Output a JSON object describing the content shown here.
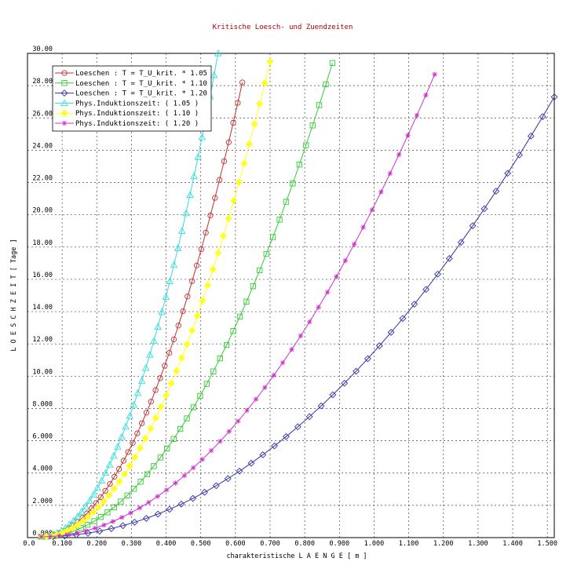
{
  "chart_data": {
    "type": "line",
    "title": "Kritische Loesch- und Zuendzeiten",
    "xlabel": "charakteristische L A E N G E  [ m ]",
    "ylabel": "L O E S C H Z E I T   [ Tage ]",
    "xlim": [
      0.0,
      1.52
    ],
    "ylim": [
      0,
      30
    ],
    "x_ticks": [
      "0.0",
      "0.100",
      "0.200",
      "0.300",
      "0.400",
      "0.500",
      "0.600",
      "0.700",
      "0.800",
      "0.900",
      "1.000",
      "1.100",
      "1.200",
      "1.300",
      "1.400",
      "1.500"
    ],
    "y_ticks": [
      "0.000",
      "2.000",
      "4.000",
      "6.000",
      "8.000",
      "10.00",
      "12.00",
      "14.00",
      "16.00",
      "18.00",
      "20.00",
      "22.00",
      "24.00",
      "26.00",
      "28.00",
      "30.00"
    ],
    "grid": true,
    "legend_position": "top-left",
    "series": [
      {
        "name": "Loeschen : T = T_U_krit. * 1.05",
        "color": "#c03030",
        "marker": "circle",
        "x_max": 0.62,
        "y_max": 28.2,
        "exponent": 2.0
      },
      {
        "name": "Loeschen : T = T_U_krit. * 1.10",
        "color": "#33cc33",
        "marker": "square",
        "x_max": 0.88,
        "y_max": 29.4,
        "exponent": 2.0
      },
      {
        "name": "Loeschen : T = T_U_krit. * 1.20",
        "color": "#3333aa",
        "marker": "diamond",
        "x_max": 1.52,
        "y_max": 27.3,
        "exponent": 2.0
      },
      {
        "name": "Phys.Induktionszeit: ( 1.05 )",
        "color": "#33dddd",
        "marker": "triangle",
        "x_max": 0.55,
        "y_max": 30.0,
        "exponent": 2.0
      },
      {
        "name": "Phys.Induktionszeit: ( 1.10 )",
        "color": "#ffff22",
        "marker": "diamond-filled",
        "x_max": 0.7,
        "y_max": 29.5,
        "exponent": 2.0
      },
      {
        "name": "Phys.Induktionszeit: ( 1.20 )",
        "color": "#cc33cc",
        "marker": "star",
        "x_max": 1.175,
        "y_max": 28.7,
        "exponent": 2.0
      }
    ]
  }
}
